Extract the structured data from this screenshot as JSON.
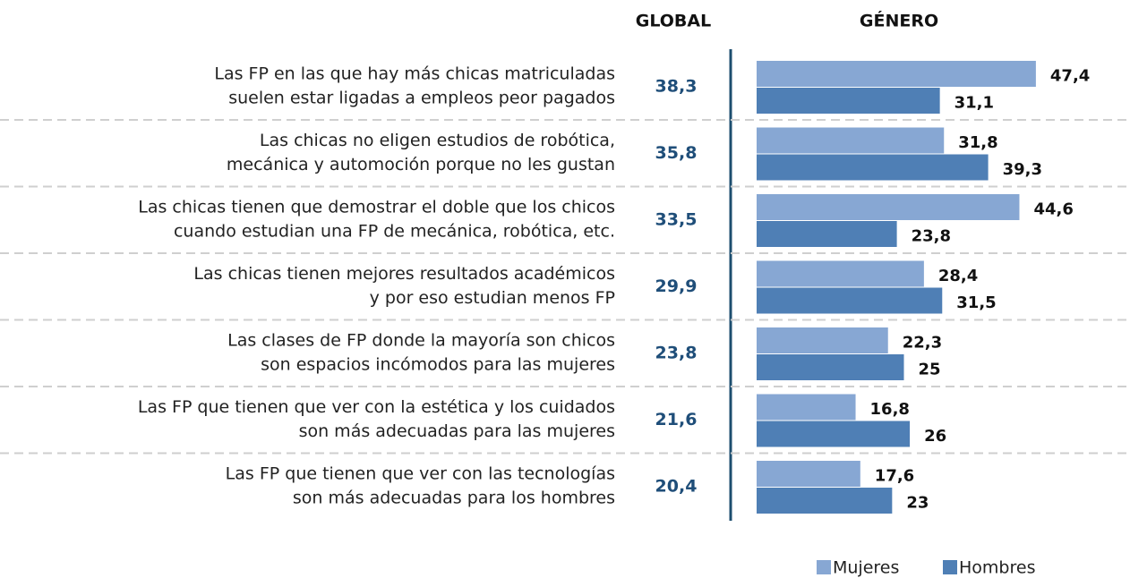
{
  "chart_data": {
    "type": "bar",
    "orientation": "horizontal",
    "global_title": "GLOBAL",
    "series_title": "GÉNERO",
    "categories": [
      [
        "Las FP en las que hay más chicas matriculadas",
        "suelen estar ligadas a empleos peor pagados"
      ],
      [
        "Las chicas no eligen estudios de robótica,",
        "mecánica y automoción porque no les gustan"
      ],
      [
        "Las chicas tienen que demostrar el doble que los chicos",
        "cuando estudian una FP de mecánica, robótica, etc."
      ],
      [
        "Las chicas tienen mejores resultados académicos",
        "y por eso estudian menos FP"
      ],
      [
        "Las clases de FP donde la mayoría son chicos",
        "son espacios incómodos para las mujeres"
      ],
      [
        "Las FP que tienen que ver con la estética y los cuidados",
        "son más adecuadas para las mujeres"
      ],
      [
        "Las FP que tienen que ver con las tecnologías",
        "son más adecuadas para los hombres"
      ]
    ],
    "global": {
      "values": [
        38.3,
        35.8,
        33.5,
        29.9,
        23.8,
        21.6,
        20.4
      ],
      "value_labels": [
        "38,3",
        "35,8",
        "33,5",
        "29,9",
        "23,8",
        "21,6",
        "20,4"
      ],
      "color": "#1f4e79"
    },
    "series": [
      {
        "name": "Mujeres",
        "color": "#87a7d3",
        "values": [
          47.4,
          31.8,
          44.6,
          28.4,
          22.3,
          16.8,
          17.6
        ],
        "value_labels": [
          "47,4",
          "31,8",
          "44,6",
          "28,4",
          "22,3",
          "16,8",
          "17,6"
        ]
      },
      {
        "name": "Hombres",
        "color": "#4f7fb5",
        "values": [
          31.1,
          39.3,
          23.8,
          31.5,
          25,
          26,
          23
        ],
        "value_labels": [
          "31,1",
          "39,3",
          "23,8",
          "31,5",
          "25",
          "26",
          "23"
        ]
      }
    ]
  }
}
